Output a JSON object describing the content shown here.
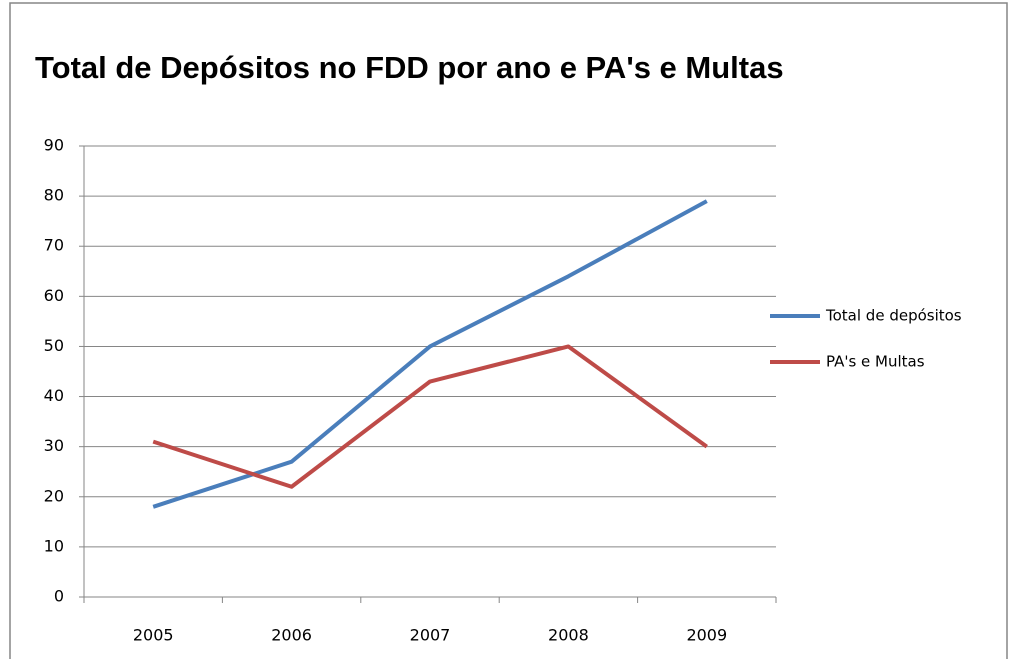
{
  "chart_data": {
    "type": "line",
    "title": "Total de Depósitos no FDD por ano e PA's e Multas",
    "categories": [
      "2005",
      "2006",
      "2007",
      "2008",
      "2009"
    ],
    "series": [
      {
        "name": "Total de depósitos",
        "color": "#4a7ebb",
        "values": [
          18,
          27,
          50,
          64,
          79
        ]
      },
      {
        "name": "PA's e Multas",
        "color": "#be4b48",
        "values": [
          31,
          22,
          43,
          50,
          30
        ]
      }
    ],
    "ylim": [
      0,
      90
    ],
    "yticks": [
      0,
      10,
      20,
      30,
      40,
      50,
      60,
      70,
      80,
      90
    ],
    "grid": true,
    "legend": "right"
  }
}
